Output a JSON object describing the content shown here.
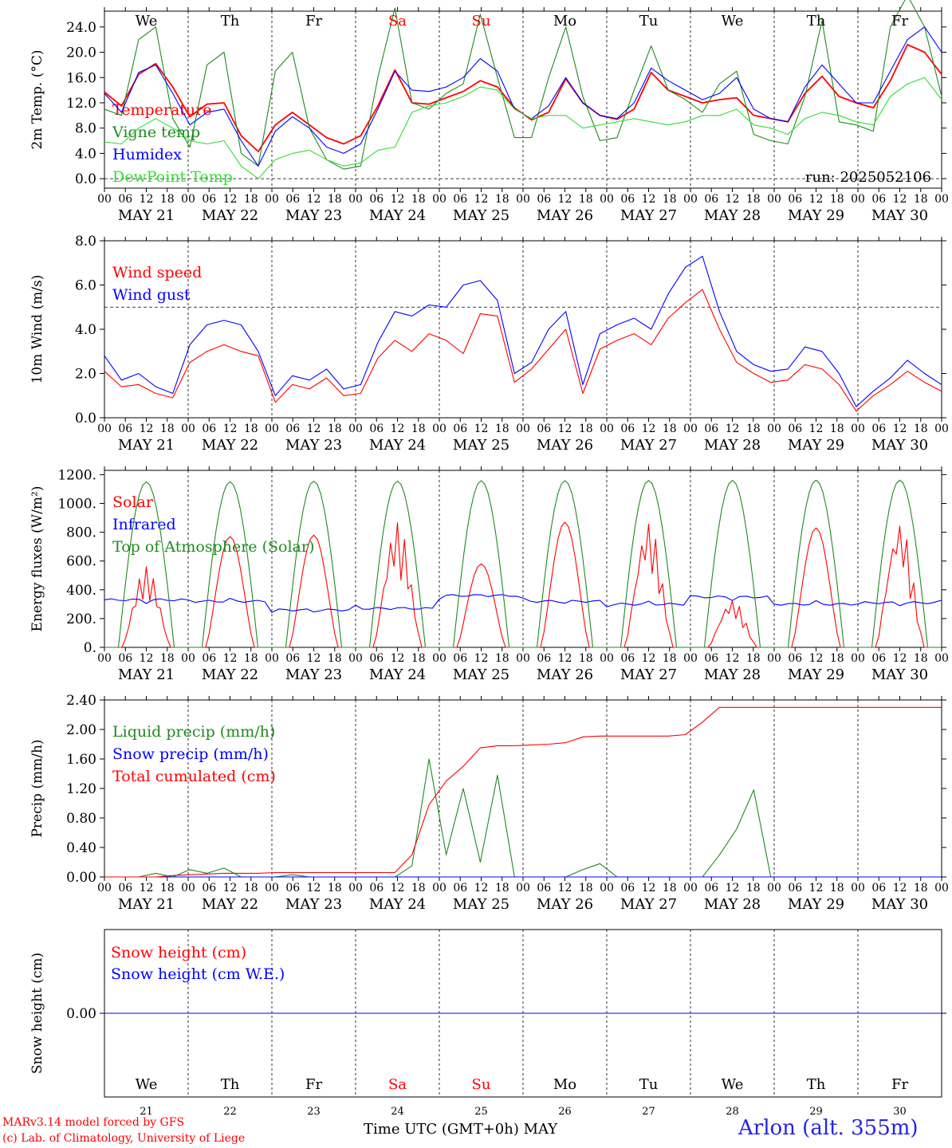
{
  "colors": {
    "red": "#ff0000",
    "green": "#1f8a1f",
    "blue": "#0000ff",
    "lightgreen": "#33dd33",
    "black": "#000000"
  },
  "days": [
    {
      "weekday": "We",
      "date": "MAY 21",
      "num": "21",
      "color": "#000000"
    },
    {
      "weekday": "Th",
      "date": "MAY 22",
      "num": "22",
      "color": "#000000"
    },
    {
      "weekday": "Fr",
      "date": "MAY 23",
      "num": "23",
      "color": "#000000"
    },
    {
      "weekday": "Sa",
      "date": "MAY 24",
      "num": "24",
      "color": "#ff0000"
    },
    {
      "weekday": "Su",
      "date": "MAY 25",
      "num": "25",
      "color": "#ff0000"
    },
    {
      "weekday": "Mo",
      "date": "MAY 26",
      "num": "26",
      "color": "#000000"
    },
    {
      "weekday": "Tu",
      "date": "MAY 27",
      "num": "27",
      "color": "#000000"
    },
    {
      "weekday": "We",
      "date": "MAY 28",
      "num": "28",
      "color": "#000000"
    },
    {
      "weekday": "Th",
      "date": "MAY 29",
      "num": "29",
      "color": "#000000"
    },
    {
      "weekday": "Fr",
      "date": "MAY 30",
      "num": "30",
      "color": "#000000"
    }
  ],
  "hour_ticks": [
    "00",
    "06",
    "12",
    "18"
  ],
  "footer": {
    "model": "MARv3.14 model forced by GFS",
    "lab": "(c) Lab. of Climatology, University of Liege",
    "xlabel": "Time UTC (GMT+0h) MAY",
    "station": "Arlon (alt. 355m)"
  },
  "chart_data": [
    {
      "type": "line",
      "ylabel": "2m Temp. (°C)",
      "ylim": [
        -1.5,
        26.5
      ],
      "yticks": [
        "0.0",
        "4.0",
        "8.0",
        "12.0",
        "16.0",
        "20.0",
        "24.0"
      ],
      "ytick_values": [
        0,
        4,
        8,
        12,
        16,
        20,
        24
      ],
      "hline": 0,
      "annotation": "run: 2025052106",
      "x_start": "2025-05-21 00 UTC",
      "x_step_hours": 6,
      "series": [
        {
          "name": "Temperature",
          "color": "#ff0000",
          "values": [
            13.7,
            11.5,
            16.5,
            18.2,
            14.5,
            9.8,
            11.8,
            12.0,
            6.8,
            4.3,
            8.5,
            10.5,
            8.5,
            6.5,
            5.5,
            6.8,
            11.5,
            17.2,
            12.0,
            11.8,
            12.8,
            13.8,
            15.5,
            14.5,
            11.2,
            9.3,
            10.5,
            15.8,
            12.0,
            10.0,
            9.4,
            11.0,
            16.8,
            14.0,
            13.0,
            12.0,
            12.5,
            12.8,
            10.0,
            9.5,
            9.0,
            13.5,
            16.2,
            13.0,
            12.0,
            11.2,
            15.5,
            21.2,
            20.0,
            16.5
          ]
        },
        {
          "name": "Vigne temp",
          "color": "#1f8a1f",
          "values": [
            11.0,
            10.0,
            22.0,
            24.0,
            9.5,
            5.0,
            18.0,
            20.0,
            4.0,
            2.0,
            17.0,
            20.0,
            8.0,
            3.0,
            1.5,
            2.0,
            16.0,
            27.0,
            12.0,
            11.0,
            13.5,
            15.0,
            26.0,
            16.0,
            6.5,
            6.5,
            16.0,
            24.0,
            13.0,
            6.0,
            6.5,
            14.0,
            21.0,
            14.0,
            12.5,
            10.5,
            15.0,
            17.0,
            7.0,
            6.0,
            5.5,
            13.0,
            25.0,
            9.0,
            8.5,
            7.5,
            24.0,
            29.0,
            24.0,
            13.0
          ]
        },
        {
          "name": "Humidex",
          "color": "#0000ff",
          "values": [
            13.5,
            10.5,
            16.8,
            18.0,
            13.5,
            8.5,
            10.5,
            11.0,
            6.0,
            2.0,
            7.5,
            9.8,
            8.0,
            5.0,
            4.0,
            5.5,
            11.0,
            17.0,
            14.0,
            13.8,
            14.5,
            16.0,
            19.0,
            17.0,
            11.0,
            9.5,
            11.5,
            16.0,
            12.0,
            10.0,
            9.5,
            12.0,
            17.5,
            15.5,
            14.0,
            12.5,
            13.5,
            16.0,
            11.0,
            9.5,
            9.0,
            14.5,
            18.0,
            15.0,
            12.0,
            12.0,
            17.0,
            22.0,
            24.0,
            20.0
          ]
        },
        {
          "name": "DewPoint Temp",
          "color": "#33dd33",
          "values": [
            5.8,
            5.5,
            8.0,
            9.5,
            8.0,
            6.0,
            5.5,
            6.0,
            2.0,
            0.0,
            3.0,
            4.0,
            4.5,
            3.0,
            2.0,
            2.5,
            4.5,
            5.0,
            10.5,
            11.5,
            12.0,
            13.0,
            14.5,
            14.0,
            11.0,
            9.5,
            10.0,
            10.0,
            8.0,
            8.5,
            9.0,
            9.5,
            9.0,
            8.5,
            9.0,
            10.0,
            10.0,
            11.0,
            8.5,
            8.0,
            7.0,
            9.5,
            10.5,
            10.0,
            9.0,
            8.5,
            13.0,
            15.0,
            16.0,
            12.5
          ]
        }
      ]
    },
    {
      "type": "line",
      "ylabel": "10m Wind (m/s)",
      "ylim": [
        0,
        8.0
      ],
      "yticks": [
        "0.0",
        "2.0",
        "4.0",
        "6.0",
        "8.0"
      ],
      "ytick_values": [
        0,
        2,
        4,
        6,
        8
      ],
      "hline": 5,
      "x_start": "2025-05-21 00 UTC",
      "x_step_hours": 6,
      "series": [
        {
          "name": "Wind speed",
          "color": "#ff0000",
          "values": [
            2.1,
            1.4,
            1.5,
            1.1,
            0.9,
            2.5,
            3.0,
            3.3,
            3.0,
            2.8,
            0.7,
            1.5,
            1.3,
            1.8,
            1.0,
            1.1,
            2.7,
            3.5,
            3.0,
            3.8,
            3.5,
            2.9,
            4.7,
            4.6,
            1.6,
            2.2,
            3.1,
            4.0,
            1.1,
            3.1,
            3.5,
            3.8,
            3.3,
            4.5,
            5.2,
            5.8,
            4.0,
            2.5,
            2.0,
            1.6,
            1.7,
            2.4,
            2.2,
            1.5,
            0.3,
            1.0,
            1.5,
            2.1,
            1.6,
            1.2
          ]
        },
        {
          "name": "Wind gust",
          "color": "#0000ff",
          "values": [
            2.8,
            1.7,
            2.0,
            1.4,
            1.1,
            3.3,
            4.2,
            4.4,
            4.2,
            3.0,
            1.0,
            1.9,
            1.7,
            2.2,
            1.3,
            1.5,
            3.4,
            4.8,
            4.6,
            5.1,
            5.0,
            6.0,
            6.2,
            5.3,
            2.0,
            2.5,
            4.0,
            4.8,
            1.5,
            3.8,
            4.2,
            4.5,
            4.0,
            5.6,
            6.8,
            7.3,
            4.8,
            3.0,
            2.4,
            2.1,
            2.2,
            3.2,
            3.0,
            2.0,
            0.5,
            1.2,
            1.8,
            2.6,
            2.0,
            1.5
          ]
        }
      ]
    },
    {
      "type": "line",
      "ylabel": "Energy fluxes (W/m²)",
      "ylim": [
        0,
        1230
      ],
      "yticks": [
        "0.",
        "200.",
        "400.",
        "600.",
        "800.",
        "1000.",
        "1200."
      ],
      "ytick_values": [
        0,
        200,
        400,
        600,
        800,
        1000,
        1200
      ],
      "x_start": "2025-05-21 00 UTC",
      "x_step_hours": 6,
      "series": [
        {
          "name": "Solar",
          "color": "#ff0000",
          "daily_peak": [
            560,
            770,
            780,
            870,
            580,
            870,
            870,
            330,
            830,
            870
          ]
        },
        {
          "name": "Infrared",
          "color": "#0000ff",
          "daily_mean": [
            330,
            320,
            260,
            270,
            360,
            320,
            300,
            350,
            300,
            310
          ]
        },
        {
          "name": "Top of Atmosphere (Solar)",
          "color": "#1f8a1f",
          "daily_peak": [
            1150,
            1150,
            1155,
            1155,
            1158,
            1158,
            1160,
            1160,
            1162,
            1162
          ]
        }
      ]
    },
    {
      "type": "line",
      "ylabel": "Precip (mm/h)",
      "ylim": [
        0,
        2.4
      ],
      "yticks": [
        "0.00",
        "0.40",
        "0.80",
        "1.20",
        "1.60",
        "2.00",
        "2.40"
      ],
      "ytick_values": [
        0,
        0.4,
        0.8,
        1.2,
        1.6,
        2.0,
        2.4
      ],
      "x_start": "2025-05-21 00 UTC",
      "x_step_hours": 6,
      "series": [
        {
          "name": "Liquid precip (mm/h)",
          "color": "#1f8a1f",
          "values": [
            0,
            0,
            0,
            0.05,
            0,
            0.1,
            0.05,
            0.12,
            0,
            0,
            0,
            0.03,
            0,
            0,
            0,
            0,
            0,
            0,
            0.15,
            1.6,
            0.3,
            1.2,
            0.2,
            1.38,
            0,
            0,
            0,
            0,
            0.1,
            0.18,
            0,
            0,
            0,
            0,
            0,
            0,
            0.3,
            0.65,
            1.18,
            0,
            0,
            0,
            0,
            0,
            0,
            0,
            0,
            0,
            0,
            0
          ]
        },
        {
          "name": "Snow precip (mm/h)",
          "color": "#0000ff",
          "values": [
            0,
            0,
            0,
            0,
            0,
            0,
            0,
            0,
            0,
            0,
            0,
            0,
            0,
            0,
            0,
            0,
            0,
            0,
            0,
            0,
            0,
            0,
            0,
            0,
            0,
            0,
            0,
            0,
            0,
            0,
            0,
            0,
            0,
            0,
            0,
            0,
            0,
            0,
            0,
            0,
            0,
            0,
            0,
            0,
            0,
            0,
            0,
            0,
            0,
            0
          ]
        },
        {
          "name": "Total cumulated (cm)",
          "color": "#ff0000",
          "values": [
            0,
            0,
            0,
            0,
            0.02,
            0.03,
            0.04,
            0.05,
            0.05,
            0.05,
            0.06,
            0.06,
            0.06,
            0.06,
            0.06,
            0.06,
            0.06,
            0.06,
            0.3,
            0.98,
            1.3,
            1.5,
            1.75,
            1.78,
            1.78,
            1.79,
            1.8,
            1.82,
            1.9,
            1.91,
            1.91,
            1.91,
            1.91,
            1.91,
            1.93,
            2.1,
            2.3,
            2.3,
            2.3,
            2.3,
            2.3,
            2.3,
            2.3,
            2.3,
            2.3,
            2.3,
            2.3,
            2.3,
            2.3,
            2.3
          ]
        }
      ]
    },
    {
      "type": "line",
      "ylabel": "Snow height (cm)",
      "ylim": [
        -1,
        1
      ],
      "yticks": [
        "0.00"
      ],
      "ytick_values": [
        0
      ],
      "x_start": "2025-05-21 00 UTC",
      "x_step_hours": 6,
      "series": [
        {
          "name": "Snow height (cm)",
          "color": "#ff0000",
          "values": [
            0,
            0
          ]
        },
        {
          "name": "Snow height (cm W.E.)",
          "color": "#0000ff",
          "values": [
            0,
            0
          ]
        }
      ]
    }
  ]
}
